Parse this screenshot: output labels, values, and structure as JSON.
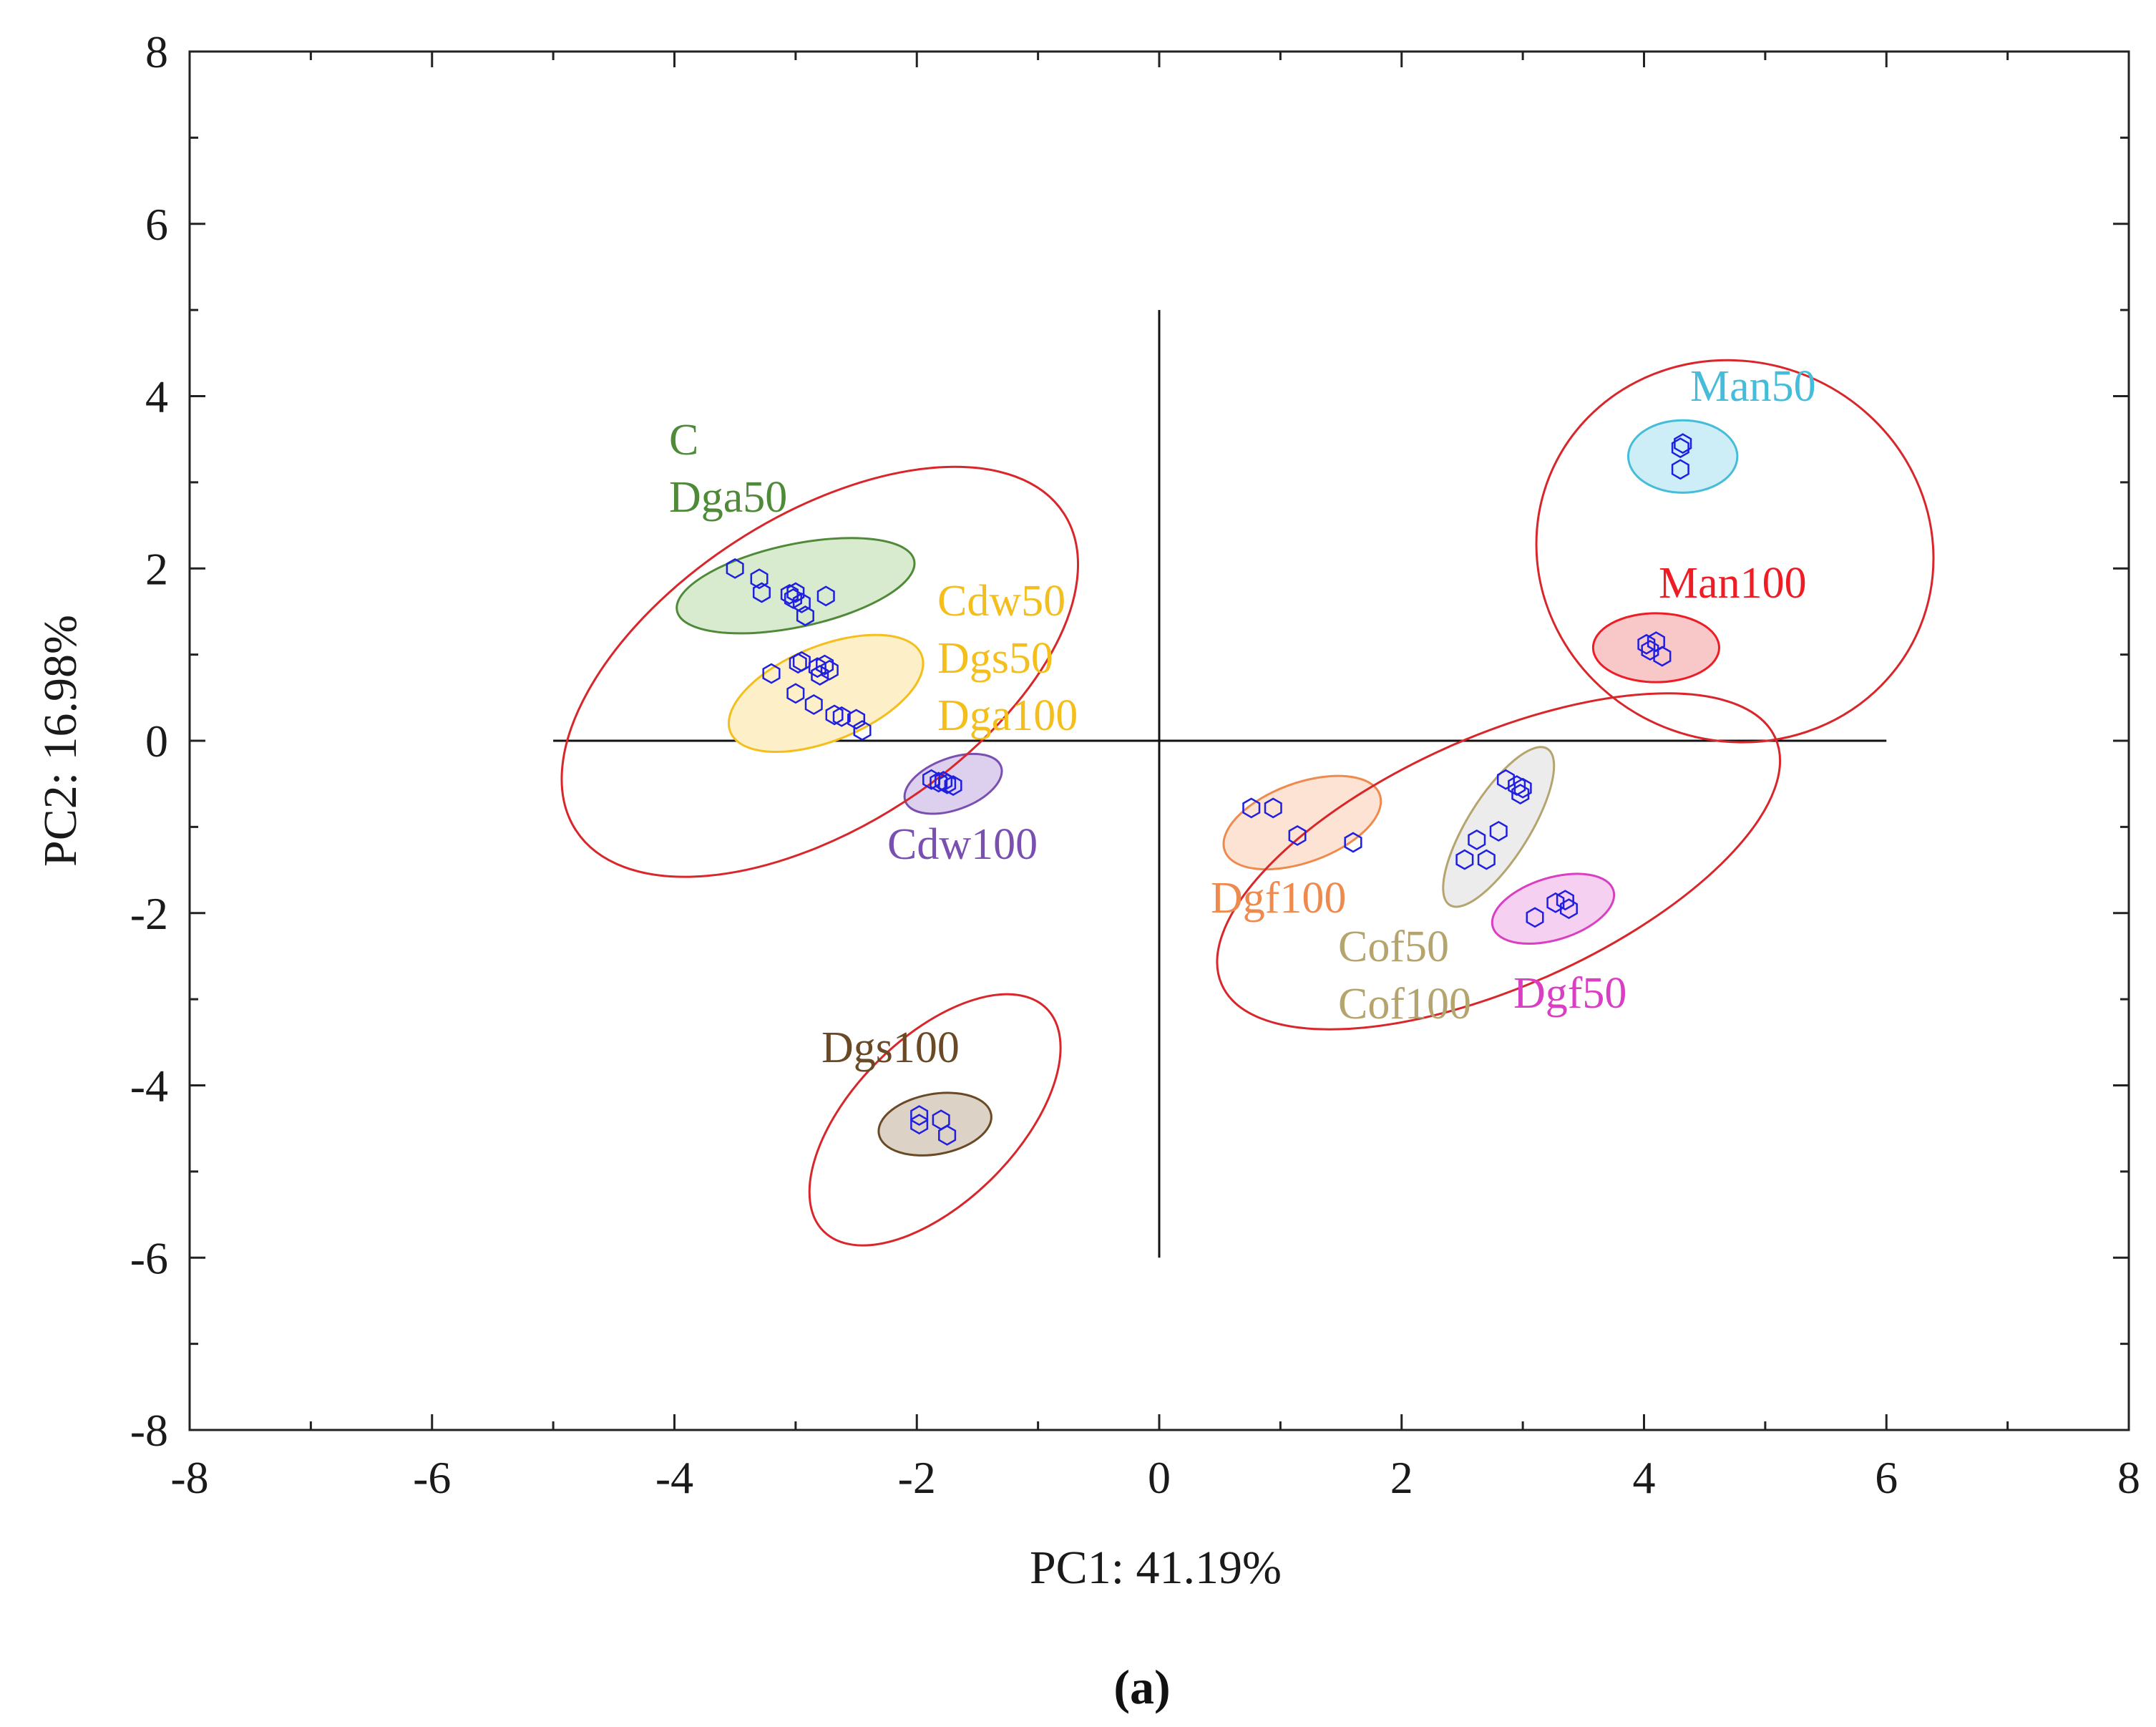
{
  "chart_data": {
    "type": "scatter",
    "xlabel": "PC1: 41.19%",
    "ylabel": "PC2: 16.98%",
    "xlim": [
      -8,
      8
    ],
    "ylim": [
      -8,
      8
    ],
    "xticks": [
      -8,
      -6,
      -4,
      -2,
      0,
      2,
      4,
      6,
      8
    ],
    "yticks": [
      -8,
      -6,
      -4,
      -2,
      0,
      2,
      4,
      6,
      8
    ],
    "xtick_labels": [
      "-8",
      "-6",
      "-4",
      "-2",
      "0",
      "2",
      "4",
      "6",
      "8"
    ],
    "ytick_labels": [
      "-8",
      "-6",
      "-4",
      "-2",
      "0",
      "2",
      "4",
      "6",
      "8"
    ],
    "caption": "(a)",
    "point_color": "#1f1fe0",
    "reference_lines": {
      "horizontal": {
        "y": 0,
        "x_from": -5,
        "x_to": 6
      },
      "vertical": {
        "x": 0,
        "y_from": -6,
        "y_to": 5
      }
    },
    "clusters": [
      {
        "name": "left-upper",
        "color": "#d9262b",
        "center": [
          -2.8,
          0.8
        ],
        "rx": 2.4,
        "ry": 1.8,
        "angle": -33
      },
      {
        "name": "left-lower",
        "color": "#d9262b",
        "center": [
          -1.85,
          -4.4
        ],
        "rx": 1.3,
        "ry": 0.95,
        "angle": -45
      },
      {
        "name": "right-upper",
        "color": "#d9262b",
        "center": [
          4.75,
          2.2
        ],
        "rx": 1.65,
        "ry": 2.2,
        "angle": 22
      },
      {
        "name": "right-lower",
        "color": "#d9262b",
        "center": [
          2.8,
          -1.4
        ],
        "rx": 2.5,
        "ry": 1.45,
        "angle": -24
      }
    ],
    "groups": [
      {
        "labels": [
          "C",
          "Dga50"
        ],
        "color": "#4e8a38",
        "fill": "#d9ebcf",
        "ellipse": {
          "center": [
            -3.0,
            1.8
          ],
          "rx": 1.0,
          "ry": 0.48,
          "angle": -12
        },
        "points": [
          [
            -3.5,
            2.0
          ],
          [
            -3.3,
            1.88
          ],
          [
            -3.28,
            1.72
          ],
          [
            -3.05,
            1.7
          ],
          [
            -3.02,
            1.65
          ],
          [
            -3.0,
            1.72
          ],
          [
            -2.95,
            1.6
          ],
          [
            -2.92,
            1.45
          ],
          [
            -2.75,
            1.68
          ]
        ]
      },
      {
        "labels": [
          "Cdw50",
          "Dgs50",
          "Dga100"
        ],
        "color": "#f4bf1c",
        "fill": "#fdf0c8",
        "ellipse": {
          "center": [
            -2.75,
            0.55
          ],
          "rx": 0.85,
          "ry": 0.55,
          "angle": -22
        },
        "points": [
          [
            -3.2,
            0.78
          ],
          [
            -3.0,
            0.55
          ],
          [
            -2.98,
            0.9
          ],
          [
            -2.95,
            0.92
          ],
          [
            -2.85,
            0.42
          ],
          [
            -2.82,
            0.85
          ],
          [
            -2.8,
            0.76
          ],
          [
            -2.76,
            0.88
          ],
          [
            -2.72,
            0.82
          ],
          [
            -2.68,
            0.3
          ],
          [
            -2.62,
            0.28
          ],
          [
            -2.5,
            0.25
          ],
          [
            -2.45,
            0.12
          ]
        ]
      },
      {
        "labels": [
          "Cdw100"
        ],
        "color": "#7a4fb2",
        "fill": "#ddd0ee",
        "ellipse": {
          "center": [
            -1.7,
            -0.5
          ],
          "rx": 0.42,
          "ry": 0.3,
          "angle": -20
        },
        "points": [
          [
            -1.88,
            -0.45
          ],
          [
            -1.82,
            -0.48
          ],
          [
            -1.78,
            -0.47
          ],
          [
            -1.75,
            -0.5
          ],
          [
            -1.7,
            -0.52
          ]
        ]
      },
      {
        "labels": [
          "Dgs100"
        ],
        "color": "#6a4a26",
        "fill": "#ddd2c6",
        "ellipse": {
          "center": [
            -1.85,
            -4.45
          ],
          "rx": 0.47,
          "ry": 0.35,
          "angle": -10
        },
        "points": [
          [
            -1.98,
            -4.35
          ],
          [
            -1.98,
            -4.45
          ],
          [
            -1.8,
            -4.4
          ],
          [
            -1.75,
            -4.58
          ]
        ]
      },
      {
        "labels": [
          "Dgf100"
        ],
        "color": "#ef8a4e",
        "fill": "#fde3d3",
        "ellipse": {
          "center": [
            1.18,
            -0.95
          ],
          "rx": 0.68,
          "ry": 0.46,
          "angle": -20
        },
        "points": [
          [
            0.76,
            -0.78
          ],
          [
            0.94,
            -0.78
          ],
          [
            1.14,
            -1.1
          ],
          [
            1.6,
            -1.18
          ]
        ]
      },
      {
        "labels": [
          "Cof50",
          "Cof100"
        ],
        "color": "#b5a46e",
        "fill": "#ececec",
        "ellipse": {
          "center": [
            2.8,
            -1.0
          ],
          "rx": 0.76,
          "ry": 0.36,
          "angle": -58
        },
        "points": [
          [
            2.52,
            -1.38
          ],
          [
            2.62,
            -1.15
          ],
          [
            2.7,
            -1.38
          ],
          [
            2.8,
            -1.05
          ],
          [
            2.86,
            -0.45
          ],
          [
            2.95,
            -0.52
          ],
          [
            2.98,
            -0.62
          ],
          [
            3.0,
            -0.55
          ]
        ]
      },
      {
        "labels": [
          "Dgf50"
        ],
        "color": "#d93fc3",
        "fill": "#f6d0f0",
        "ellipse": {
          "center": [
            3.25,
            -1.95
          ],
          "rx": 0.52,
          "ry": 0.36,
          "angle": -17
        },
        "points": [
          [
            3.1,
            -2.05
          ],
          [
            3.27,
            -1.88
          ],
          [
            3.35,
            -1.85
          ],
          [
            3.38,
            -1.95
          ]
        ]
      },
      {
        "labels": [
          "Man50"
        ],
        "color": "#45bcd9",
        "fill": "#cdeef7",
        "ellipse": {
          "center": [
            4.32,
            3.3
          ],
          "rx": 0.45,
          "ry": 0.42,
          "angle": 0
        },
        "points": [
          [
            4.3,
            3.4
          ],
          [
            4.32,
            3.45
          ],
          [
            4.3,
            3.15
          ]
        ]
      },
      {
        "labels": [
          "Man100"
        ],
        "color": "#ee1c24",
        "fill": "#f8c8c8",
        "ellipse": {
          "center": [
            4.1,
            1.08
          ],
          "rx": 0.52,
          "ry": 0.4,
          "angle": 0
        },
        "points": [
          [
            4.02,
            1.12
          ],
          [
            4.05,
            1.05
          ],
          [
            4.1,
            1.15
          ],
          [
            4.15,
            0.98
          ]
        ]
      }
    ]
  }
}
